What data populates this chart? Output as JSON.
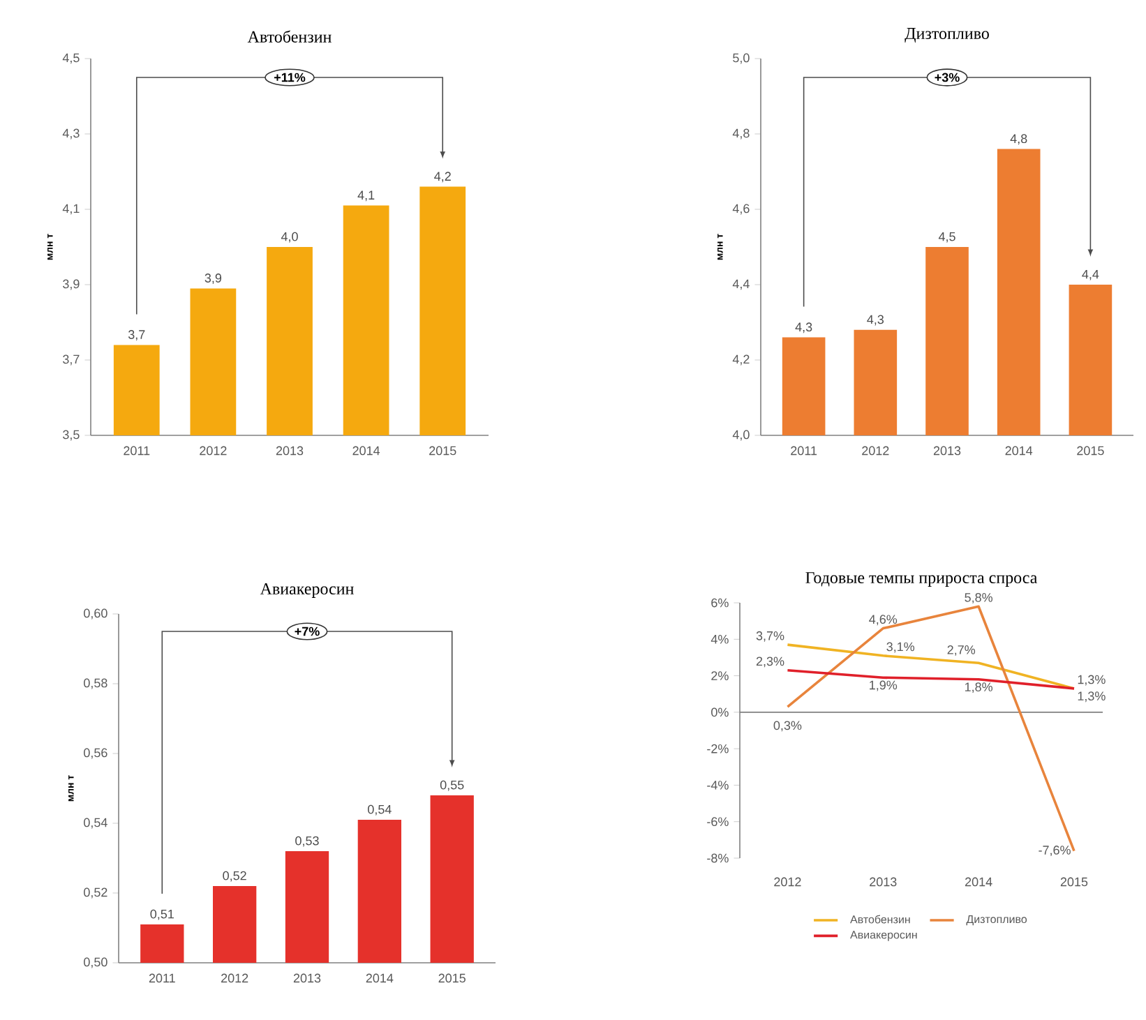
{
  "chart_data": [
    {
      "type": "bar",
      "title": "Автобензин",
      "ylabel": "млн т",
      "categories": [
        "2011",
        "2012",
        "2013",
        "2014",
        "2015"
      ],
      "values": [
        3.74,
        3.89,
        4.0,
        4.11,
        4.16
      ],
      "value_labels": [
        "3,7",
        "3,9",
        "4,0",
        "4,1",
        "4,2"
      ],
      "color": "#f5a90f",
      "ylim": [
        3.5,
        4.5
      ],
      "yticks": [
        {
          "value": 3.5,
          "label": "3,5"
        },
        {
          "value": 3.7,
          "label": "3,7"
        },
        {
          "value": 3.9,
          "label": "3,9"
        },
        {
          "value": 4.1,
          "label": "4,1"
        },
        {
          "value": 4.3,
          "label": "4,3"
        },
        {
          "value": 4.5,
          "label": "4,5"
        }
      ],
      "annotations": [
        "+11%"
      ]
    },
    {
      "type": "bar",
      "title": "Дизтопливо",
      "ylabel": "млн т",
      "categories": [
        "2011",
        "2012",
        "2013",
        "2014",
        "2015"
      ],
      "values": [
        4.26,
        4.28,
        4.5,
        4.76,
        4.4
      ],
      "value_labels": [
        "4,3",
        "4,3",
        "4,5",
        "4,8",
        "4,4"
      ],
      "color": "#ed7d31",
      "ylim": [
        4.0,
        5.0
      ],
      "yticks": [
        {
          "value": 4.0,
          "label": "4,0"
        },
        {
          "value": 4.2,
          "label": "4,2"
        },
        {
          "value": 4.4,
          "label": "4,4"
        },
        {
          "value": 4.6,
          "label": "4,6"
        },
        {
          "value": 4.8,
          "label": "4,8"
        },
        {
          "value": 5.0,
          "label": "5,0"
        }
      ],
      "annotations": [
        "+3%"
      ]
    },
    {
      "type": "bar",
      "title": "Авиакеросин",
      "ylabel": "млн т",
      "categories": [
        "2011",
        "2012",
        "2013",
        "2014",
        "2015"
      ],
      "values": [
        0.511,
        0.522,
        0.532,
        0.541,
        0.548
      ],
      "value_labels": [
        "0,51",
        "0,52",
        "0,53",
        "0,54",
        "0,55"
      ],
      "color": "#e5312b",
      "ylim": [
        0.5,
        0.6
      ],
      "yticks": [
        {
          "value": 0.5,
          "label": "0,50"
        },
        {
          "value": 0.52,
          "label": "0,52"
        },
        {
          "value": 0.54,
          "label": "0,54"
        },
        {
          "value": 0.56,
          "label": "0,56"
        },
        {
          "value": 0.58,
          "label": "0,58"
        },
        {
          "value": 0.6,
          "label": "0,60"
        }
      ],
      "annotations": [
        "+7%"
      ]
    },
    {
      "type": "line",
      "title": "Годовые темпы прироста спроса",
      "categories": [
        "2012",
        "2013",
        "2014",
        "2015"
      ],
      "ylim": [
        -8,
        6
      ],
      "yticks": [
        {
          "value": -8,
          "label": "-8%"
        },
        {
          "value": -6,
          "label": "-6%"
        },
        {
          "value": -4,
          "label": "-4%"
        },
        {
          "value": -2,
          "label": "-2%"
        },
        {
          "value": 0,
          "label": "0%"
        },
        {
          "value": 2,
          "label": "2%"
        },
        {
          "value": 4,
          "label": "4%"
        },
        {
          "value": 6,
          "label": "6%"
        }
      ],
      "legend": "bottom",
      "series": [
        {
          "name": "Автобензин",
          "color": "#f0b323",
          "values": [
            3.7,
            3.1,
            2.7,
            1.3
          ],
          "value_labels": [
            "3,7%",
            "3,1%",
            "2,7%",
            "1,3%"
          ]
        },
        {
          "name": "Дизтопливо",
          "color": "#e8843c",
          "values": [
            0.3,
            4.6,
            5.8,
            -7.6
          ],
          "value_labels": [
            "0,3%",
            "4,6%",
            "5,8%",
            "-7,6%"
          ]
        },
        {
          "name": "Авиакеросин",
          "color": "#e0202a",
          "values": [
            2.3,
            1.9,
            1.8,
            1.3
          ],
          "value_labels": [
            "2,3%",
            "1,9%",
            "1,8%",
            "1,3%"
          ]
        }
      ]
    }
  ]
}
